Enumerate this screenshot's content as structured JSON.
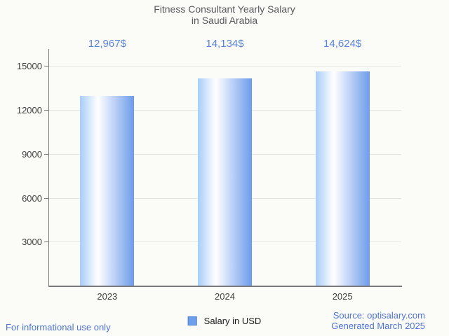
{
  "title": {
    "line1": "Fitness Consultant Yearly Salary",
    "line2": "in Saudi Arabia"
  },
  "chart_data": {
    "type": "bar",
    "categories": [
      "2023",
      "2024",
      "2025"
    ],
    "values": [
      12967,
      14134,
      14624
    ],
    "value_labels": [
      "12,967$",
      "14,134$",
      "14,624$"
    ],
    "series_name": "Salary in USD",
    "title": "Fitness Consultant Yearly Salary in Saudi Arabia",
    "xlabel": "",
    "ylabel": "",
    "ylim": [
      0,
      16160
    ],
    "yticks": [
      3000,
      6000,
      9000,
      12000,
      15000
    ],
    "grid": true,
    "legend_position": "bottom"
  },
  "legend": {
    "label": "Salary in USD"
  },
  "footer": {
    "left": "For informational use only",
    "source": "Source: optisalary.com",
    "generated": "Generated March 2025"
  },
  "colors": {
    "background": "#fbfbf7",
    "title_text": "#58595b",
    "annotation_text": "#5b84d8",
    "axis_text": "#3f3f3f",
    "axis_line": "#7a7a7a",
    "grid_line": "#e4e4e2",
    "bar_gradient_left": "#a7cef8",
    "bar_gradient_mid": "#ffffff",
    "bar_gradient_right": "#6d9ceb",
    "legend_fill": "#6d9eeb",
    "legend_border": "#4f82d4",
    "legend_text": "#1a1a1a",
    "footer_text": "#4d74d6"
  }
}
